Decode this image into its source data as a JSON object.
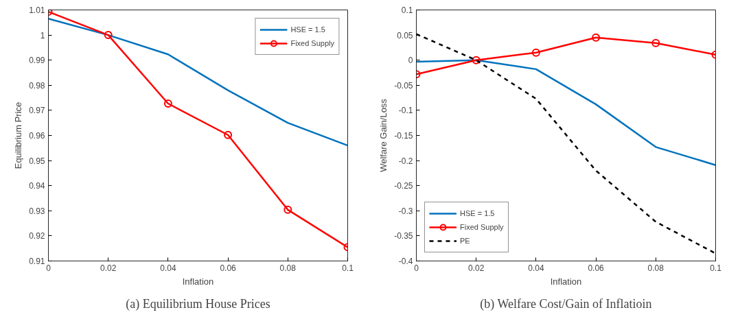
{
  "chart_data": [
    {
      "type": "line",
      "title": "(a) Equilibrium House Prices",
      "xlabel": "Inflation",
      "ylabel": "Equilibrium Price",
      "x": [
        0,
        0.02,
        0.04,
        0.06,
        0.08,
        0.1
      ],
      "xlim": [
        0,
        0.1
      ],
      "xticks": [
        0,
        0.02,
        0.04,
        0.06,
        0.08,
        0.1
      ],
      "ylim": [
        0.91,
        1.01
      ],
      "yticks": [
        0.91,
        0.92,
        0.93,
        0.94,
        0.95,
        0.96,
        0.97,
        0.98,
        0.99,
        1,
        1.01
      ],
      "grid": false,
      "legend": "top right",
      "series": [
        {
          "name": "HSE = 1.5",
          "color": "#0072bd",
          "values": [
            1.0065,
            1.0,
            0.9923,
            0.978,
            0.965,
            0.956
          ],
          "marker": "none",
          "line_style": "solid"
        },
        {
          "name": "Fixed Supply",
          "color": "#ff0000",
          "values": [
            1.0093,
            1.0,
            0.9727,
            0.9602,
            0.9304,
            0.9155
          ],
          "marker": "circle",
          "line_style": "solid"
        }
      ]
    },
    {
      "type": "line",
      "title": "(b) Welfare Cost/Gain of Inflatioin",
      "xlabel": "Inflation",
      "ylabel": "Welfare Gain/Loss",
      "x": [
        0,
        0.02,
        0.04,
        0.06,
        0.08,
        0.1
      ],
      "xlim": [
        0,
        0.1
      ],
      "xticks": [
        0,
        0.02,
        0.04,
        0.06,
        0.08,
        0.1
      ],
      "ylim": [
        -0.4,
        0.1
      ],
      "yticks": [
        -0.4,
        -0.35,
        -0.3,
        -0.25,
        -0.2,
        -0.15,
        -0.1,
        -0.05,
        0,
        0.05,
        0.1
      ],
      "grid": false,
      "legend": "bottom left",
      "series": [
        {
          "name": "HSE = 1.5",
          "color": "#0072bd",
          "values": [
            -0.003,
            0,
            -0.018,
            -0.088,
            -0.173,
            -0.209
          ],
          "marker": "none",
          "line_style": "solid"
        },
        {
          "name": "Fixed Supply",
          "color": "#ff0000",
          "values": [
            -0.028,
            0,
            0.015,
            0.045,
            0.034,
            0.011
          ],
          "marker": "circle",
          "line_style": "solid"
        },
        {
          "name": "PE",
          "color": "#000000",
          "values": [
            0.052,
            0,
            -0.077,
            -0.22,
            -0.322,
            -0.385
          ],
          "marker": "none",
          "line_style": "dashed"
        }
      ]
    }
  ]
}
